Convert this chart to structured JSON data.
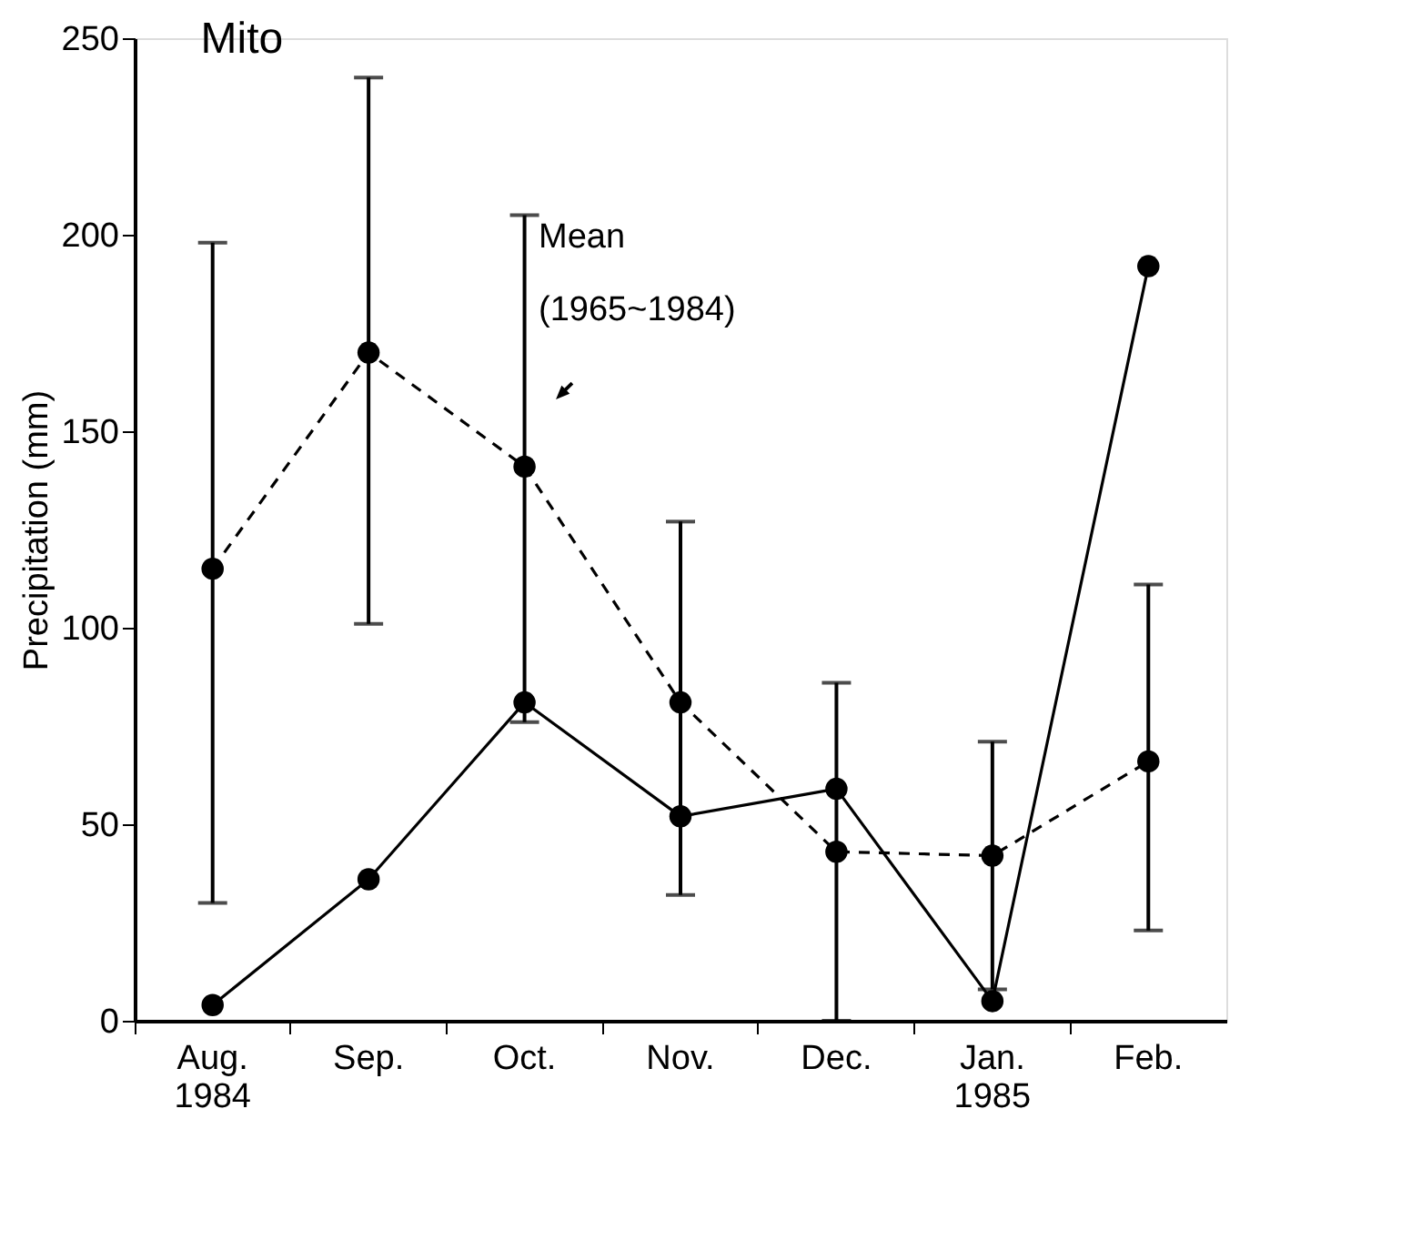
{
  "chart_data": {
    "type": "line",
    "title": "Mito",
    "ylabel": "Precipitation (mm)",
    "categories": [
      "Aug.\n1984",
      "Sep.",
      "Oct.",
      "Nov.",
      "Dec.",
      "Jan.\n1985",
      "Feb."
    ],
    "series": [
      {
        "color": "#000000",
        "line_style": "dashed",
        "values": [
          115,
          170,
          141,
          81,
          43,
          42,
          66
        ],
        "errors": [
          [
            30,
            198
          ],
          [
            101,
            240
          ],
          [
            76,
            205
          ],
          [
            32,
            127
          ],
          [
            0,
            86
          ],
          [
            8,
            71
          ],
          [
            23,
            111
          ]
        ]
      },
      {
        "color": "#000000",
        "line_style": "solid",
        "values": [
          4,
          36,
          81,
          52,
          59,
          5,
          192
        ]
      }
    ],
    "annotations": [
      "Mean\n(1965~1984)"
    ],
    "ylim": [
      0,
      250
    ],
    "yticks": [
      0,
      50,
      100,
      150,
      200,
      250
    ],
    "grid": false,
    "marker": "circle"
  }
}
